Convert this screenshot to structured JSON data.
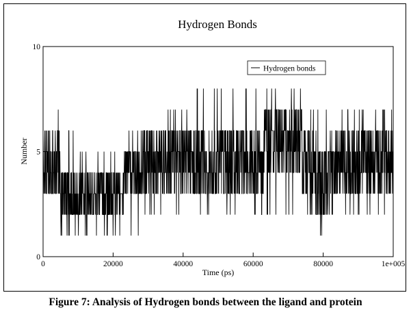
{
  "chart_data": {
    "type": "line",
    "title": "Hydrogen Bonds",
    "xlabel": "Time (ps)",
    "ylabel": "Number",
    "xlim": [
      0,
      100000
    ],
    "ylim": [
      0,
      10
    ],
    "x_ticks": [
      0,
      20000,
      40000,
      60000,
      80000,
      100000
    ],
    "x_tick_labels": [
      "0",
      "20000",
      "40000",
      "60000",
      "80000",
      "1e+005"
    ],
    "y_ticks": [
      0,
      5,
      10
    ],
    "y_tick_labels": [
      "0",
      "5",
      "10"
    ],
    "grid": false,
    "legend_position": "top-right",
    "series_color": "#000000",
    "series": [
      {
        "name": "Hydrogen bonds",
        "segments": [
          {
            "x_start": 0,
            "x_end": 5000,
            "typical_min": 3,
            "typical_max": 6,
            "extreme_min": 1,
            "extreme_max": 7
          },
          {
            "x_start": 5000,
            "x_end": 10000,
            "typical_min": 2,
            "typical_max": 4,
            "extreme_min": 1,
            "extreme_max": 6
          },
          {
            "x_start": 10000,
            "x_end": 23000,
            "typical_min": 2,
            "typical_max": 4,
            "extreme_min": 1,
            "extreme_max": 5
          },
          {
            "x_start": 23000,
            "x_end": 28000,
            "typical_min": 3,
            "typical_max": 5,
            "extreme_min": 1,
            "extreme_max": 6
          },
          {
            "x_start": 28000,
            "x_end": 43000,
            "typical_min": 3,
            "typical_max": 6,
            "extreme_min": 2,
            "extreme_max": 7
          },
          {
            "x_start": 43000,
            "x_end": 63000,
            "typical_min": 3,
            "typical_max": 6,
            "extreme_min": 2,
            "extreme_max": 8
          },
          {
            "x_start": 63000,
            "x_end": 74000,
            "typical_min": 4,
            "typical_max": 7,
            "extreme_min": 2,
            "extreme_max": 8
          },
          {
            "x_start": 74000,
            "x_end": 78000,
            "typical_min": 3,
            "typical_max": 6,
            "extreme_min": 2,
            "extreme_max": 7
          },
          {
            "x_start": 78000,
            "x_end": 82000,
            "typical_min": 2,
            "typical_max": 5,
            "extreme_min": 1,
            "extreme_max": 7
          },
          {
            "x_start": 82000,
            "x_end": 100000,
            "typical_min": 3,
            "typical_max": 6,
            "extreme_min": 2,
            "extreme_max": 7
          }
        ]
      }
    ]
  },
  "caption": "Figure 7: Analysis of Hydrogen bonds between the ligand and protein"
}
